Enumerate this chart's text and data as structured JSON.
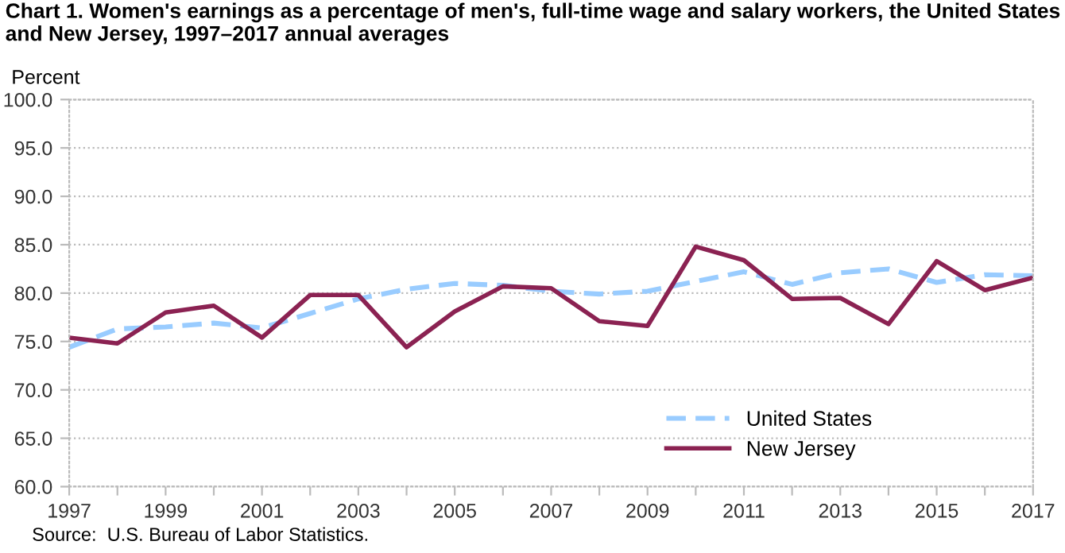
{
  "chart_data": {
    "type": "line",
    "title": "Chart 1. Women's earnings as a percentage of men's, full-time wage and salary workers, the United States and New Jersey, 1997–2017 annual averages",
    "ylabel": "Percent",
    "x": [
      1997,
      1998,
      1999,
      2000,
      2001,
      2002,
      2003,
      2004,
      2005,
      2006,
      2007,
      2008,
      2009,
      2010,
      2011,
      2012,
      2013,
      2014,
      2015,
      2016,
      2017
    ],
    "series": [
      {
        "name": "United States",
        "color": "#99ccff",
        "line_style": "dashed",
        "values": [
          74.4,
          76.3,
          76.5,
          76.9,
          76.4,
          77.9,
          79.4,
          80.4,
          81.0,
          80.8,
          80.2,
          79.9,
          80.2,
          81.2,
          82.2,
          80.9,
          82.1,
          82.5,
          81.1,
          81.9,
          81.8
        ]
      },
      {
        "name": "New Jersey",
        "color": "#8b2252",
        "line_style": "solid",
        "values": [
          75.4,
          74.8,
          78.0,
          78.7,
          75.4,
          79.8,
          79.8,
          74.4,
          78.1,
          80.7,
          80.5,
          77.1,
          76.6,
          84.8,
          83.4,
          79.4,
          79.5,
          76.8,
          83.3,
          80.3,
          81.6
        ]
      }
    ],
    "xlim": [
      1997,
      2017
    ],
    "xticks": [
      1997,
      {
        "value": 1998,
        "label": null
      },
      1999,
      {
        "value": 2000,
        "label": null
      },
      2001,
      {
        "value": 2002,
        "label": null
      },
      2003,
      {
        "value": 2004,
        "label": null
      },
      2005,
      {
        "value": 2006,
        "label": null
      },
      2007,
      {
        "value": 2008,
        "label": null
      },
      2009,
      {
        "value": 2010,
        "label": null
      },
      2011,
      {
        "value": 2012,
        "label": null
      },
      2013,
      {
        "value": 2014,
        "label": null
      },
      2015,
      {
        "value": 2016,
        "label": null
      },
      2017
    ],
    "ylim": [
      60,
      100
    ],
    "yticks": [
      {
        "value": 60,
        "label": "60.0"
      },
      {
        "value": 65,
        "label": "65.0"
      },
      {
        "value": 70,
        "label": "70.0"
      },
      {
        "value": 75,
        "label": "75.0"
      },
      {
        "value": 80,
        "label": "80.0"
      },
      {
        "value": 85,
        "label": "85.0"
      },
      {
        "value": 90,
        "label": "90.0"
      },
      {
        "value": 95,
        "label": "95.0"
      },
      {
        "value": 100,
        "label": "100.0"
      }
    ],
    "grid": "y",
    "legend": "bottom right",
    "marker": "none",
    "annotations": [
      "Source:  U.S. Bureau of Labor Statistics."
    ]
  }
}
